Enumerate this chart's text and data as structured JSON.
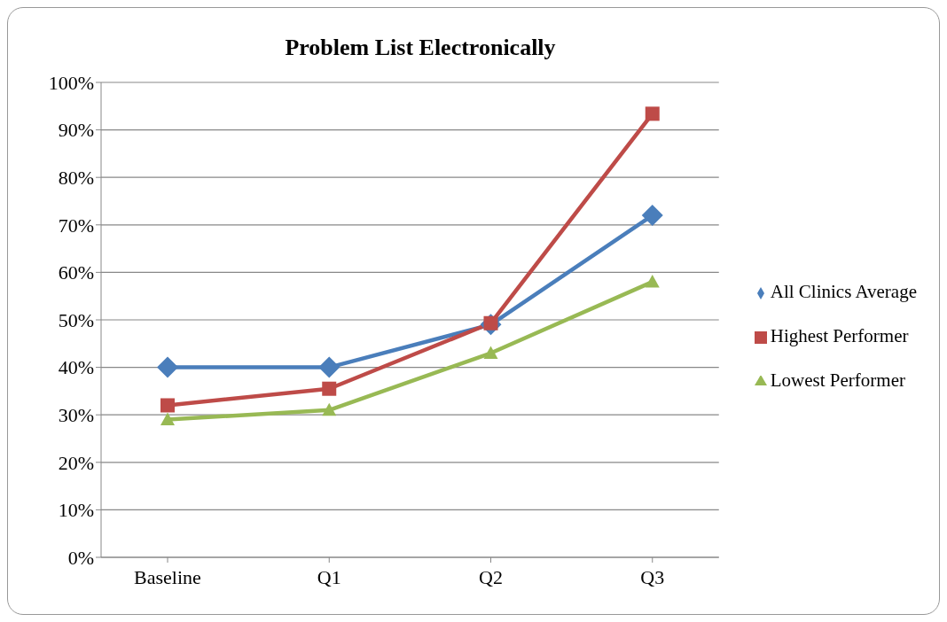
{
  "chart_data": {
    "type": "line",
    "title": "Problem List Electronically",
    "categories": [
      "Baseline",
      "Q1",
      "Q2",
      "Q3"
    ],
    "series": [
      {
        "name": "All Clinics Average",
        "color": "#4a7ebb",
        "marker": "diamond",
        "values": [
          40,
          40,
          49,
          72
        ]
      },
      {
        "name": "Highest Performer",
        "color": "#be4b48",
        "marker": "square",
        "values": [
          32,
          35.5,
          49.3,
          93.4
        ]
      },
      {
        "name": "Lowest Performer",
        "color": "#98b954",
        "marker": "triangle",
        "values": [
          29,
          31,
          43,
          58
        ]
      }
    ],
    "ylim": [
      0,
      100
    ],
    "yticks": [
      {
        "value": 0,
        "label": "0%"
      },
      {
        "value": 10,
        "label": "10%"
      },
      {
        "value": 20,
        "label": "20%"
      },
      {
        "value": 30,
        "label": "30%"
      },
      {
        "value": 40,
        "label": "40%"
      },
      {
        "value": 50,
        "label": "50%"
      },
      {
        "value": 60,
        "label": "60%"
      },
      {
        "value": 70,
        "label": "70%"
      },
      {
        "value": 80,
        "label": "80%"
      },
      {
        "value": 90,
        "label": "90%"
      },
      {
        "value": 100,
        "label": "100%"
      }
    ],
    "grid": "y",
    "legend": "right",
    "line_style": "solid"
  }
}
